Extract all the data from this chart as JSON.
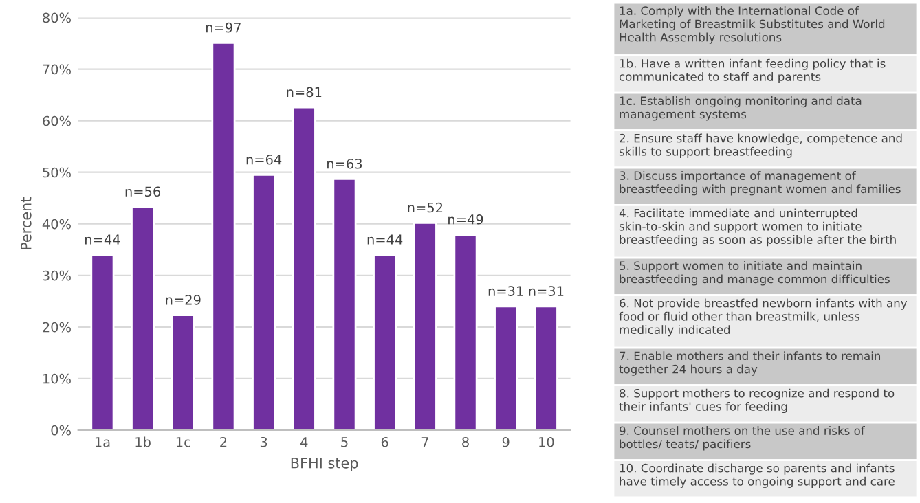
{
  "chart_data": {
    "type": "bar",
    "xlabel": "BFHI step",
    "ylabel": "Percent",
    "categories": [
      "1a",
      "1b",
      "1c",
      "2",
      "3",
      "4",
      "5",
      "6",
      "7",
      "8",
      "9",
      "10"
    ],
    "series": [
      {
        "color": "#7030a0",
        "values": [
          34,
          43.3,
          22.3,
          75.1,
          49.5,
          62.6,
          48.7,
          34,
          40.2,
          37.9,
          24,
          24
        ]
      }
    ],
    "value_labels": [
      "n=44",
      "n=56",
      "n=29",
      "n=97",
      "n=64",
      "n=81",
      "n=63",
      "n=44",
      "n=52",
      "n=49",
      "n=31",
      "n=31"
    ],
    "ylim": [
      0,
      80
    ],
    "yticks": [
      {
        "value": 0,
        "label": "0%"
      },
      {
        "value": 10,
        "label": "10%"
      },
      {
        "value": 20,
        "label": "20%"
      },
      {
        "value": 30,
        "label": "30%"
      },
      {
        "value": 40,
        "label": "40%"
      },
      {
        "value": 50,
        "label": "50%"
      },
      {
        "value": 60,
        "label": "60%"
      },
      {
        "value": 70,
        "label": "70%"
      },
      {
        "value": 80,
        "label": "80%"
      }
    ],
    "grid": "y",
    "legend": false,
    "annotations": [
      "1a. Comply with the International Code of Marketing of Breastmilk Substitutes and World Health Assembly resolutions",
      "1b. Have a written infant feeding policy that is communicated to staff and parents",
      "1c. Establish ongoing monitoring and data management systems",
      "2. Ensure staff have knowledge, competence and skills to support breastfeeding",
      "3. Discuss importance of management of breastfeeding with pregnant women and families",
      "4. Facilitate immediate and uninterrupted skin-to-skin and support women to initiate breastfeeding as soon as possible after the birth",
      "5. Support women to initiate and maintain breastfeeding and manage common difficulties",
      "6. Not provide breastfed newborn infants with any food or fluid other than breastmilk, unless medically indicated",
      "7. Enable mothers and their infants to remain together 24 hours a day",
      "8. Support mothers to recognize and respond to their infants' cues for feeding",
      "9. Counsel mothers on the use and risks of bottles/ teats/ pacifiers",
      "10. Coordinate discharge so parents and infants have timely access to ongoing support and care"
    ]
  }
}
